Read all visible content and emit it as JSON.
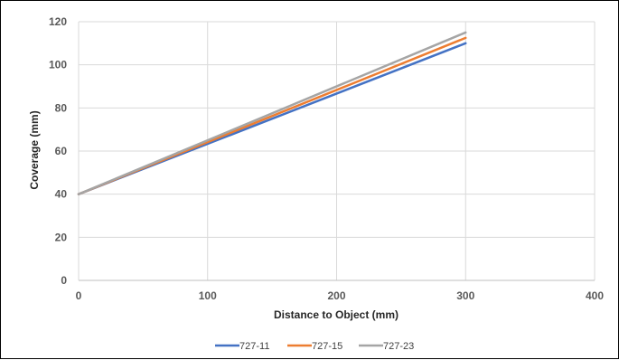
{
  "chart_data": {
    "type": "line",
    "title": "",
    "xlabel": "Distance to Object (mm)",
    "ylabel": "Coverage  (mm)",
    "xlim": [
      0,
      400
    ],
    "ylim": [
      0,
      120
    ],
    "xticks": [
      0,
      100,
      200,
      300,
      400
    ],
    "yticks": [
      0,
      20,
      40,
      60,
      80,
      100,
      120
    ],
    "grid": true,
    "legend_position": "bottom",
    "x": [
      0,
      300
    ],
    "series": [
      {
        "name": "727-11",
        "color": "#4472C4",
        "values": [
          40,
          110
        ]
      },
      {
        "name": "727-15",
        "color": "#ED7D31",
        "values": [
          40,
          112.5
        ]
      },
      {
        "name": "727-23",
        "color": "#A5A5A5",
        "values": [
          40,
          115
        ]
      }
    ]
  }
}
